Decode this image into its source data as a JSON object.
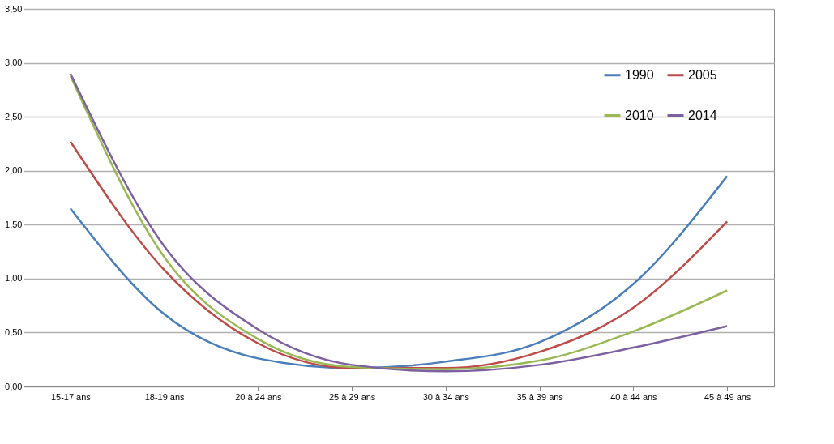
{
  "chart_data": {
    "type": "line",
    "categories": [
      "15-17 ans",
      "18-19 ans",
      "20 à 24 ans",
      "25 à 29 ans",
      "30 à 34 ans",
      "35 à 39 ans",
      "40 à 44 ans",
      "45 à 49 ans"
    ],
    "series": [
      {
        "name": "1990",
        "color": "#4a7ebb",
        "values": [
          1.65,
          0.67,
          0.26,
          0.17,
          0.23,
          0.41,
          0.95,
          1.95
        ]
      },
      {
        "name": "2005",
        "color": "#be4b48",
        "values": [
          2.27,
          1.08,
          0.4,
          0.17,
          0.17,
          0.32,
          0.73,
          1.53
        ]
      },
      {
        "name": "2010",
        "color": "#98b954",
        "values": [
          2.88,
          1.2,
          0.44,
          0.18,
          0.16,
          0.24,
          0.51,
          0.89
        ]
      },
      {
        "name": "2014",
        "color": "#7d60a0",
        "values": [
          2.9,
          1.3,
          0.53,
          0.2,
          0.14,
          0.2,
          0.36,
          0.56
        ]
      }
    ],
    "ylim": [
      0,
      3.5
    ],
    "yticks": [
      {
        "value": 0,
        "label": "0,00"
      },
      {
        "value": 0.5,
        "label": "0,50"
      },
      {
        "value": 1,
        "label": "1,00"
      },
      {
        "value": 1.5,
        "label": "1,50"
      },
      {
        "value": 2,
        "label": "2,00"
      },
      {
        "value": 2.5,
        "label": "2,50"
      },
      {
        "value": 3,
        "label": "3,00"
      },
      {
        "value": 3.5,
        "label": "3,50"
      }
    ],
    "grid": "y",
    "legend": "top right",
    "marker": "none",
    "line_style": "solid"
  }
}
